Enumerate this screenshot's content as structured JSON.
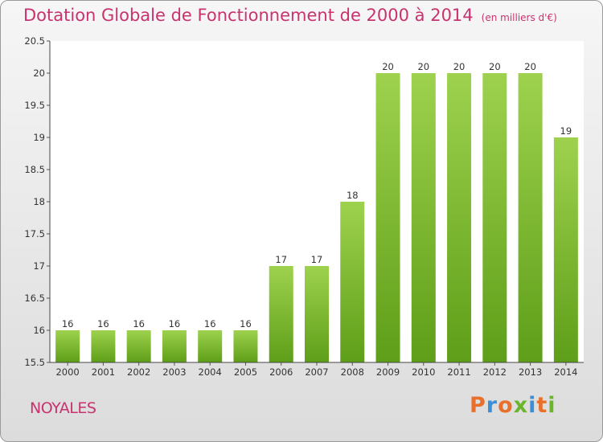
{
  "header": {
    "title": "Dotation Globale de Fonctionnement de 2000 à 2014",
    "unit": "(en milliers d'€)"
  },
  "commune": "NOYALES",
  "logo": {
    "text": "Proxiti",
    "letter_colors": [
      "#e8702a",
      "#3a8fd8",
      "#e8702a",
      "#6bb52e",
      "#3a8fd8",
      "#e8702a",
      "#6bb52e"
    ]
  },
  "colors": {
    "title": "#c8336f",
    "bar_top": "#9ed24e",
    "bar_bottom": "#5e9e18"
  },
  "chart_data": {
    "type": "bar",
    "title": "Dotation Globale de Fonctionnement de 2000 à 2014",
    "subtitle": "(en milliers d'€)",
    "xlabel": "",
    "ylabel": "",
    "categories": [
      "2000",
      "2001",
      "2002",
      "2003",
      "2004",
      "2005",
      "2006",
      "2007",
      "2008",
      "2009",
      "2010",
      "2011",
      "2012",
      "2013",
      "2014"
    ],
    "values": [
      16,
      16,
      16,
      16,
      16,
      16,
      17,
      17,
      18,
      20,
      20,
      20,
      20,
      20,
      19
    ],
    "data_labels": [
      "16",
      "16",
      "16",
      "16",
      "16",
      "16",
      "17",
      "17",
      "18",
      "20",
      "20",
      "20",
      "20",
      "20",
      "19"
    ],
    "ylim": [
      15.5,
      20.5
    ],
    "yticks": [
      "15.5",
      "16",
      "16.5",
      "17",
      "17.5",
      "18",
      "18.5",
      "19",
      "19.5",
      "20",
      "20.5"
    ],
    "grid": false,
    "legend": "none"
  }
}
